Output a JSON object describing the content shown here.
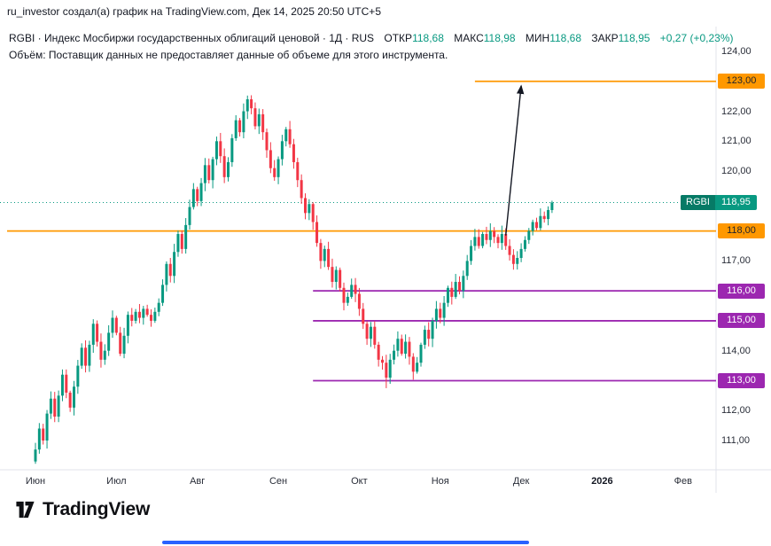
{
  "attribution": "ru_investor создал(а) график на TradingView.com, Дек 14, 2025 20:50 UTC+5",
  "legend": {
    "title": "RGBI · Индекс Мосбиржи государственных облигаций ценовой · 1Д · RUS",
    "ohlc": [
      {
        "label": "ОТКР",
        "value": "118,68"
      },
      {
        "label": "МАКС",
        "value": "118,98"
      },
      {
        "label": "МИН",
        "value": "118,68"
      },
      {
        "label": "ЗАКР",
        "value": "118,95"
      }
    ],
    "change": "+0,27 (+0,23%)",
    "volume_note": "Объём: Поставщик данных не предоставляет данные об объеме для этого инструмента."
  },
  "watermark": {
    "text": "TradingView"
  },
  "colors": {
    "up": "#089981",
    "down": "#f23645",
    "orange": "#ff9800",
    "purple": "#9c27b0",
    "annotation": "#131722",
    "axis_text": "#2a2e39",
    "border": "#e0e3eb",
    "progress": "#2962ff"
  },
  "chart_data": {
    "type": "candlestick",
    "title": "RGBI — Индекс Мосбиржи государственных облигаций ценовой",
    "timeframe": "1Д",
    "exchange": "RUS",
    "ylim": [
      110.2,
      124.4
    ],
    "grid": false,
    "open_first": 110.3,
    "closes": [
      110.7,
      111.4,
      111.0,
      111.9,
      112.4,
      111.8,
      112.5,
      113.2,
      112.6,
      112.1,
      112.8,
      113.5,
      114.1,
      113.5,
      114.2,
      114.9,
      114.3,
      113.7,
      114.0,
      114.6,
      115.1,
      114.6,
      113.9,
      114.5,
      115.2,
      115.0,
      115.3,
      115.1,
      115.4,
      115.2,
      115.0,
      115.3,
      115.6,
      116.2,
      116.9,
      116.5,
      117.3,
      117.9,
      117.4,
      118.2,
      118.8,
      119.4,
      119.0,
      119.6,
      120.2,
      119.7,
      120.4,
      121.0,
      120.5,
      119.8,
      120.3,
      121.1,
      121.7,
      121.3,
      122.0,
      122.4,
      122.1,
      121.5,
      121.9,
      121.3,
      120.7,
      120.1,
      119.8,
      120.4,
      121.0,
      121.4,
      120.9,
      120.3,
      119.7,
      119.1,
      118.6,
      118.9,
      118.3,
      117.6,
      117.0,
      117.4,
      116.8,
      116.3,
      116.7,
      116.1,
      115.6,
      115.8,
      116.2,
      115.9,
      115.4,
      114.9,
      114.4,
      114.8,
      114.2,
      113.7,
      113.6,
      113.1,
      113.7,
      114.0,
      114.4,
      113.9,
      114.3,
      113.8,
      113.3,
      113.6,
      114.2,
      114.7,
      114.4,
      115.0,
      115.4,
      115.1,
      115.6,
      116.1,
      115.8,
      116.3,
      116.0,
      116.5,
      117.0,
      117.5,
      117.8,
      117.5,
      117.9,
      117.7,
      118.0,
      117.8,
      117.6,
      117.9,
      117.5,
      117.2,
      116.9,
      117.1,
      117.4,
      117.7,
      118.0,
      118.3,
      118.1,
      118.5,
      118.4,
      118.7,
      118.95
    ],
    "low_override": {
      "day": 91,
      "price": 112.75
    },
    "last_values": {
      "open": 118.68,
      "high": 118.98,
      "low": 118.68,
      "close": 118.95,
      "change": 0.27,
      "change_pct": 0.23
    },
    "current_price": 118.95,
    "levels": [
      {
        "price": 123.0,
        "color": "#ff9800",
        "from_day": 114
      },
      {
        "price": 118.0,
        "color": "#ff9800",
        "from_day": null
      },
      {
        "price": 116.0,
        "color": "#9c27b0",
        "from_day": 72
      },
      {
        "price": 115.0,
        "color": "#9c27b0",
        "from_day": 72
      },
      {
        "price": 113.0,
        "color": "#9c27b0",
        "from_day": 72
      }
    ],
    "annotation_arrow": {
      "from": {
        "day": 122,
        "price": 117.85
      },
      "to": {
        "day": 126,
        "price": 122.85
      }
    },
    "price_ticks": [
      {
        "text": "124,00",
        "price": 124
      },
      {
        "text": "122,00",
        "price": 122
      },
      {
        "text": "121,00",
        "price": 121
      },
      {
        "text": "120,00",
        "price": 120
      },
      {
        "text": "117,00",
        "price": 117
      },
      {
        "text": "114,00",
        "price": 114
      },
      {
        "text": "112,00",
        "price": 112
      },
      {
        "text": "111,00",
        "price": 111
      }
    ],
    "price_badges": [
      {
        "text": "123,00",
        "price": 123,
        "bg": "#ff9800",
        "fg": "#1e222d"
      },
      {
        "text": "118,00",
        "price": 118,
        "bg": "#ff9800",
        "fg": "#1e222d"
      },
      {
        "text": "116,00",
        "price": 116,
        "bg": "#9c27b0",
        "fg": "#ffffff"
      },
      {
        "text": "115,00",
        "price": 115,
        "bg": "#9c27b0",
        "fg": "#ffffff"
      },
      {
        "text": "113,00",
        "price": 113,
        "bg": "#9c27b0",
        "fg": "#ffffff"
      }
    ],
    "current_price_badge": {
      "symbol": "RGBI",
      "text": "118,95",
      "price": 118.95,
      "bg": "#089981",
      "symbol_bg": "#067a66"
    },
    "x_labels": [
      {
        "text": "Июн",
        "day": 0
      },
      {
        "text": "Июл",
        "day": 21
      },
      {
        "text": "Авг",
        "day": 42
      },
      {
        "text": "Сен",
        "day": 63
      },
      {
        "text": "Окт",
        "day": 84
      },
      {
        "text": "Ноя",
        "day": 105
      },
      {
        "text": "Дек",
        "day": 126
      },
      {
        "text": "2026",
        "day": 147,
        "bold": true
      },
      {
        "text": "Фев",
        "day": 168
      }
    ]
  }
}
